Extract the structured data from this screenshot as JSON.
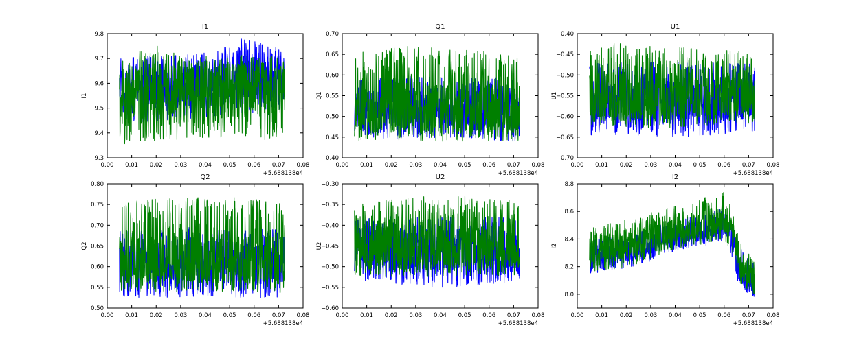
{
  "chart_data": [
    {
      "type": "line",
      "title": "I1",
      "ylabel": "I1",
      "xlabel": "",
      "x_offset_label": "+5.688138e4",
      "xlim": [
        0.0,
        0.08
      ],
      "ylim": [
        9.3,
        9.8
      ],
      "xticks": [
        0.0,
        0.01,
        0.02,
        0.03,
        0.04,
        0.05,
        0.06,
        0.07,
        0.08
      ],
      "xtick_labels": [
        "0.00",
        "0.01",
        "0.02",
        "0.03",
        "0.04",
        "0.05",
        "0.06",
        "0.07",
        "0.08"
      ],
      "yticks": [
        9.3,
        9.4,
        9.5,
        9.6,
        9.7,
        9.8
      ],
      "ytick_labels": [
        "9.3",
        "9.4",
        "9.5",
        "9.6",
        "9.7",
        "9.8"
      ],
      "x_range": [
        0.005,
        0.0725
      ],
      "series": [
        {
          "name": "series-blue",
          "color": "#0000ff",
          "x": [
            0.005,
            0.015,
            0.025,
            0.035,
            0.045,
            0.055,
            0.065,
            0.0725
          ],
          "center": [
            9.58,
            9.58,
            9.59,
            9.6,
            9.6,
            9.62,
            9.61,
            9.6
          ],
          "low": [
            9.44,
            9.44,
            9.45,
            9.46,
            9.47,
            9.48,
            9.47,
            9.45
          ],
          "high": [
            9.7,
            9.71,
            9.71,
            9.72,
            9.73,
            9.78,
            9.76,
            9.73
          ]
        },
        {
          "name": "series-green",
          "color": "#007f00",
          "x": [
            0.005,
            0.015,
            0.025,
            0.035,
            0.045,
            0.055,
            0.065,
            0.0725
          ],
          "center": [
            9.56,
            9.57,
            9.58,
            9.59,
            9.59,
            9.6,
            9.59,
            9.58
          ],
          "low": [
            9.34,
            9.36,
            9.37,
            9.38,
            9.38,
            9.39,
            9.36,
            9.4
          ],
          "high": [
            9.7,
            9.74,
            9.76,
            9.72,
            9.7,
            9.72,
            9.71,
            9.73
          ]
        }
      ]
    },
    {
      "type": "line",
      "title": "Q1",
      "ylabel": "Q1",
      "xlabel": "",
      "x_offset_label": "+5.688138e4",
      "xlim": [
        0.0,
        0.08
      ],
      "ylim": [
        0.4,
        0.7
      ],
      "xticks": [
        0.0,
        0.01,
        0.02,
        0.03,
        0.04,
        0.05,
        0.06,
        0.07,
        0.08
      ],
      "xtick_labels": [
        "0.00",
        "0.01",
        "0.02",
        "0.03",
        "0.04",
        "0.05",
        "0.06",
        "0.07",
        "0.08"
      ],
      "yticks": [
        0.4,
        0.45,
        0.5,
        0.55,
        0.6,
        0.65,
        0.7
      ],
      "ytick_labels": [
        "0.40",
        "0.45",
        "0.50",
        "0.55",
        "0.60",
        "0.65",
        "0.70"
      ],
      "x_range": [
        0.005,
        0.0725
      ],
      "series": [
        {
          "name": "series-blue",
          "color": "#0000ff",
          "x": [
            0.005,
            0.015,
            0.025,
            0.035,
            0.045,
            0.055,
            0.065,
            0.0725
          ],
          "center": [
            0.52,
            0.52,
            0.52,
            0.52,
            0.52,
            0.52,
            0.52,
            0.52
          ],
          "low": [
            0.445,
            0.445,
            0.447,
            0.448,
            0.447,
            0.445,
            0.44,
            0.438
          ],
          "high": [
            0.595,
            0.595,
            0.597,
            0.598,
            0.598,
            0.597,
            0.595,
            0.592
          ]
        },
        {
          "name": "series-green",
          "color": "#007f00",
          "x": [
            0.005,
            0.015,
            0.025,
            0.035,
            0.045,
            0.055,
            0.065,
            0.0725
          ],
          "center": [
            0.52,
            0.52,
            0.52,
            0.52,
            0.52,
            0.52,
            0.52,
            0.52
          ],
          "low": [
            0.44,
            0.44,
            0.44,
            0.44,
            0.44,
            0.44,
            0.44,
            0.44
          ],
          "high": [
            0.655,
            0.66,
            0.67,
            0.668,
            0.66,
            0.66,
            0.655,
            0.645
          ]
        }
      ]
    },
    {
      "type": "line",
      "title": "U1",
      "ylabel": "U1",
      "xlabel": "",
      "x_offset_label": "+5.688138e4",
      "xlim": [
        0.0,
        0.08
      ],
      "ylim": [
        -0.7,
        -0.4
      ],
      "xticks": [
        0.0,
        0.01,
        0.02,
        0.03,
        0.04,
        0.05,
        0.06,
        0.07,
        0.08
      ],
      "xtick_labels": [
        "0.00",
        "0.01",
        "0.02",
        "0.03",
        "0.04",
        "0.05",
        "0.06",
        "0.07",
        "0.08"
      ],
      "yticks": [
        -0.7,
        -0.65,
        -0.6,
        -0.55,
        -0.5,
        -0.45,
        -0.4
      ],
      "ytick_labels": [
        "−0.70",
        "−0.65",
        "−0.60",
        "−0.55",
        "−0.50",
        "−0.45",
        "−0.40"
      ],
      "x_range": [
        0.005,
        0.0725
      ],
      "series": [
        {
          "name": "series-blue",
          "color": "#0000ff",
          "x": [
            0.005,
            0.015,
            0.025,
            0.035,
            0.045,
            0.055,
            0.065,
            0.0725
          ],
          "center": [
            -0.56,
            -0.56,
            -0.56,
            -0.56,
            -0.56,
            -0.56,
            -0.56,
            -0.56
          ],
          "low": [
            -0.645,
            -0.648,
            -0.65,
            -0.655,
            -0.65,
            -0.645,
            -0.64,
            -0.635
          ],
          "high": [
            -0.47,
            -0.47,
            -0.468,
            -0.468,
            -0.468,
            -0.47,
            -0.47,
            -0.47
          ]
        },
        {
          "name": "series-green",
          "color": "#007f00",
          "x": [
            0.005,
            0.015,
            0.025,
            0.035,
            0.045,
            0.055,
            0.065,
            0.0725
          ],
          "center": [
            -0.55,
            -0.55,
            -0.55,
            -0.55,
            -0.55,
            -0.55,
            -0.55,
            -0.55
          ],
          "low": [
            -0.62,
            -0.625,
            -0.628,
            -0.63,
            -0.625,
            -0.62,
            -0.615,
            -0.615
          ],
          "high": [
            -0.44,
            -0.42,
            -0.43,
            -0.43,
            -0.43,
            -0.44,
            -0.44,
            -0.45
          ]
        }
      ]
    },
    {
      "type": "line",
      "title": "Q2",
      "ylabel": "Q2",
      "xlabel": "",
      "x_offset_label": "+5.688138e4",
      "xlim": [
        0.0,
        0.08
      ],
      "ylim": [
        0.5,
        0.8
      ],
      "xticks": [
        0.0,
        0.01,
        0.02,
        0.03,
        0.04,
        0.05,
        0.06,
        0.07,
        0.08
      ],
      "xtick_labels": [
        "0.00",
        "0.01",
        "0.02",
        "0.03",
        "0.04",
        "0.05",
        "0.06",
        "0.07",
        "0.08"
      ],
      "yticks": [
        0.5,
        0.55,
        0.6,
        0.65,
        0.7,
        0.75,
        0.8
      ],
      "ytick_labels": [
        "0.50",
        "0.55",
        "0.60",
        "0.65",
        "0.70",
        "0.75",
        "0.80"
      ],
      "x_range": [
        0.005,
        0.0725
      ],
      "series": [
        {
          "name": "series-blue",
          "color": "#0000ff",
          "x": [
            0.005,
            0.015,
            0.025,
            0.035,
            0.045,
            0.055,
            0.065,
            0.0725
          ],
          "center": [
            0.61,
            0.61,
            0.61,
            0.61,
            0.61,
            0.61,
            0.61,
            0.61
          ],
          "low": [
            0.525,
            0.525,
            0.525,
            0.528,
            0.528,
            0.525,
            0.52,
            0.515
          ],
          "high": [
            0.69,
            0.69,
            0.692,
            0.695,
            0.695,
            0.693,
            0.69,
            0.69
          ]
        },
        {
          "name": "series-green",
          "color": "#007f00",
          "x": [
            0.005,
            0.015,
            0.025,
            0.035,
            0.045,
            0.055,
            0.065,
            0.0725
          ],
          "center": [
            0.62,
            0.62,
            0.62,
            0.62,
            0.62,
            0.62,
            0.62,
            0.62
          ],
          "low": [
            0.54,
            0.54,
            0.54,
            0.54,
            0.54,
            0.54,
            0.535,
            0.53
          ],
          "high": [
            0.76,
            0.76,
            0.77,
            0.77,
            0.765,
            0.77,
            0.76,
            0.75
          ]
        }
      ]
    },
    {
      "type": "line",
      "title": "U2",
      "ylabel": "U2",
      "xlabel": "",
      "x_offset_label": "+5.688138e4",
      "xlim": [
        0.0,
        0.08
      ],
      "ylim": [
        -0.6,
        -0.3
      ],
      "xticks": [
        0.0,
        0.01,
        0.02,
        0.03,
        0.04,
        0.05,
        0.06,
        0.07,
        0.08
      ],
      "xtick_labels": [
        "0.00",
        "0.01",
        "0.02",
        "0.03",
        "0.04",
        "0.05",
        "0.06",
        "0.07",
        "0.08"
      ],
      "yticks": [
        -0.6,
        -0.55,
        -0.5,
        -0.45,
        -0.4,
        -0.35,
        -0.3
      ],
      "ytick_labels": [
        "−0.60",
        "−0.55",
        "−0.50",
        "−0.45",
        "−0.40",
        "−0.35",
        "−0.30"
      ],
      "x_range": [
        0.005,
        0.0725
      ],
      "series": [
        {
          "name": "series-blue",
          "color": "#0000ff",
          "x": [
            0.005,
            0.015,
            0.025,
            0.035,
            0.045,
            0.055,
            0.065,
            0.0725
          ],
          "center": [
            -0.46,
            -0.46,
            -0.46,
            -0.46,
            -0.46,
            -0.46,
            -0.46,
            -0.46
          ],
          "low": [
            -0.535,
            -0.54,
            -0.545,
            -0.55,
            -0.55,
            -0.545,
            -0.54,
            -0.535
          ],
          "high": [
            -0.38,
            -0.38,
            -0.378,
            -0.378,
            -0.378,
            -0.38,
            -0.38,
            -0.38
          ]
        },
        {
          "name": "series-green",
          "color": "#007f00",
          "x": [
            0.005,
            0.015,
            0.025,
            0.035,
            0.045,
            0.055,
            0.065,
            0.0725
          ],
          "center": [
            -0.45,
            -0.45,
            -0.45,
            -0.45,
            -0.45,
            -0.45,
            -0.45,
            -0.45
          ],
          "low": [
            -0.525,
            -0.525,
            -0.525,
            -0.525,
            -0.525,
            -0.525,
            -0.525,
            -0.525
          ],
          "high": [
            -0.34,
            -0.34,
            -0.33,
            -0.33,
            -0.33,
            -0.33,
            -0.335,
            -0.34
          ]
        }
      ]
    },
    {
      "type": "line",
      "title": "I2",
      "ylabel": "I2",
      "xlabel": "",
      "x_offset_label": "+5.688138e4",
      "xlim": [
        0.0,
        0.08
      ],
      "ylim": [
        7.9,
        8.8
      ],
      "xticks": [
        0.0,
        0.01,
        0.02,
        0.03,
        0.04,
        0.05,
        0.06,
        0.07,
        0.08
      ],
      "xtick_labels": [
        "0.00",
        "0.01",
        "0.02",
        "0.03",
        "0.04",
        "0.05",
        "0.06",
        "0.07",
        "0.08"
      ],
      "yticks": [
        8.0,
        8.2,
        8.4,
        8.6,
        8.8
      ],
      "ytick_labels": [
        "8.0",
        "8.2",
        "8.4",
        "8.6",
        "8.8"
      ],
      "x_range": [
        0.005,
        0.0725
      ],
      "series": [
        {
          "name": "series-blue",
          "color": "#0000ff",
          "x": [
            0.005,
            0.015,
            0.025,
            0.035,
            0.045,
            0.055,
            0.06,
            0.0625,
            0.066,
            0.0725
          ],
          "center": [
            8.28,
            8.3,
            8.33,
            8.4,
            8.44,
            8.47,
            8.5,
            8.45,
            8.2,
            8.08
          ],
          "low": [
            8.15,
            8.17,
            8.2,
            8.28,
            8.32,
            8.35,
            8.38,
            8.3,
            8.06,
            7.97
          ],
          "high": [
            8.4,
            8.42,
            8.46,
            8.52,
            8.56,
            8.6,
            8.64,
            8.55,
            8.35,
            8.22
          ]
        },
        {
          "name": "series-green",
          "color": "#007f00",
          "x": [
            0.005,
            0.015,
            0.025,
            0.035,
            0.045,
            0.055,
            0.06,
            0.0625,
            0.066,
            0.0725
          ],
          "center": [
            8.32,
            8.34,
            8.38,
            8.44,
            8.47,
            8.5,
            8.54,
            8.48,
            8.22,
            8.1
          ],
          "low": [
            8.16,
            8.18,
            8.22,
            8.3,
            8.34,
            8.37,
            8.4,
            8.32,
            8.08,
            7.99
          ],
          "high": [
            8.49,
            8.52,
            8.56,
            8.62,
            8.66,
            8.72,
            8.76,
            8.66,
            8.42,
            8.24
          ]
        }
      ]
    }
  ]
}
